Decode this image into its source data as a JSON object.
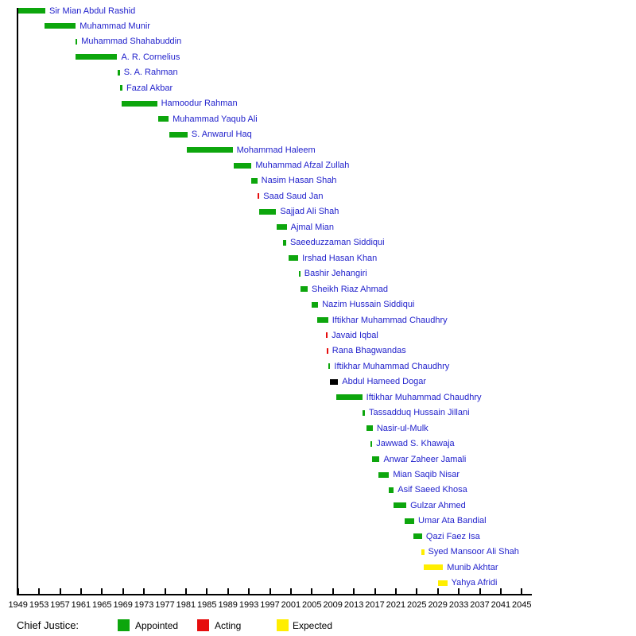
{
  "chart_data": {
    "type": "timeline",
    "title": "",
    "description": "Tenure timeline of Chief Justices of Pakistan",
    "x_axis": {
      "start_year": 1949,
      "end_year": 2045,
      "tick_step": 4,
      "tick_years": [
        1949,
        1953,
        1957,
        1961,
        1965,
        1969,
        1973,
        1977,
        1981,
        1985,
        1989,
        1993,
        1997,
        2001,
        2005,
        2009,
        2013,
        2017,
        2021,
        2025,
        2029,
        2033,
        2037,
        2041,
        2045
      ]
    },
    "legend": {
      "title": "Chief Justice:",
      "items": [
        {
          "label": "Appointed",
          "status": "appointed"
        },
        {
          "label": "Acting",
          "status": "acting"
        },
        {
          "label": "Expected",
          "status": "expected"
        }
      ]
    },
    "status_colors": {
      "appointed": "#0DA60D",
      "acting": "#E60D0D",
      "expected": "#FFEE00",
      "de_facto": "#000000"
    },
    "label_color": "#2222CC",
    "axis_color": "#000000",
    "justices": [
      {
        "name": "Sir Mian Abdul Rashid",
        "start": 1949.1,
        "end": 1954.2,
        "status": "appointed"
      },
      {
        "name": "Muhammad Munir",
        "start": 1954.1,
        "end": 1960.0,
        "status": "appointed"
      },
      {
        "name": "Muhammad Shahabuddin",
        "start": 1959.9,
        "end": 1960.3,
        "status": "appointed"
      },
      {
        "name": "A. R. Cornelius",
        "start": 1960.0,
        "end": 1967.9,
        "status": "appointed"
      },
      {
        "name": "S. A. Rahman",
        "start": 1968.0,
        "end": 1968.4,
        "status": "appointed"
      },
      {
        "name": "Fazal Akbar",
        "start": 1968.5,
        "end": 1968.9,
        "status": "appointed"
      },
      {
        "name": "Hamoodur Rahman",
        "start": 1968.7,
        "end": 1975.5,
        "status": "appointed"
      },
      {
        "name": "Muhammad Yaqub Ali",
        "start": 1975.7,
        "end": 1977.7,
        "status": "appointed"
      },
      {
        "name": "S. Anwarul Haq",
        "start": 1977.9,
        "end": 1981.3,
        "status": "appointed"
      },
      {
        "name": "Mohammad Haleem",
        "start": 1981.1,
        "end": 1989.9,
        "status": "appointed"
      },
      {
        "name": "Muhammad Afzal Zullah",
        "start": 1990.1,
        "end": 1993.5,
        "status": "appointed"
      },
      {
        "name": "Nasim Hasan Shah",
        "start": 1993.5,
        "end": 1994.6,
        "status": "appointed"
      },
      {
        "name": "Saad Saud Jan",
        "start": 1994.6,
        "end": 1995.0,
        "status": "acting"
      },
      {
        "name": "Sajjad Ali Shah",
        "start": 1994.9,
        "end": 1998.2,
        "status": "appointed"
      },
      {
        "name": "Ajmal Mian",
        "start": 1998.3,
        "end": 2000.2,
        "status": "appointed"
      },
      {
        "name": "Saeeduzzaman Siddiqui",
        "start": 1999.5,
        "end": 2000.1,
        "status": "appointed"
      },
      {
        "name": "Irshad Hasan Khan",
        "start": 2000.6,
        "end": 2002.4,
        "status": "appointed"
      },
      {
        "name": "Bashir Jehangiri",
        "start": 2002.5,
        "end": 2002.8,
        "status": "appointed"
      },
      {
        "name": "Sheikh Riaz Ahmad",
        "start": 2002.8,
        "end": 2004.2,
        "status": "appointed"
      },
      {
        "name": "Nazim Hussain Siddiqui",
        "start": 2004.9,
        "end": 2006.2,
        "status": "appointed"
      },
      {
        "name": "Iftikhar Muhammad Chaudhry",
        "start": 2006.0,
        "end": 2008.1,
        "status": "appointed"
      },
      {
        "name": "Javaid Iqbal",
        "start": 2007.7,
        "end": 2008.0,
        "status": "acting"
      },
      {
        "name": "Rana Bhagwandas",
        "start": 2007.8,
        "end": 2008.1,
        "status": "acting"
      },
      {
        "name": "Iftikhar Muhammad Chaudhry",
        "start": 2008.1,
        "end": 2008.5,
        "status": "appointed"
      },
      {
        "name": "Abdul Hameed Dogar",
        "start": 2008.5,
        "end": 2010.0,
        "status": "de_facto"
      },
      {
        "name": "Iftikhar Muhammad Chaudhry",
        "start": 2009.7,
        "end": 2014.6,
        "status": "appointed"
      },
      {
        "name": "Tassadduq Hussain Jillani",
        "start": 2014.6,
        "end": 2015.1,
        "status": "appointed"
      },
      {
        "name": "Nasir-ul-Mulk",
        "start": 2015.4,
        "end": 2016.6,
        "status": "appointed"
      },
      {
        "name": "Jawwad S. Khawaja",
        "start": 2016.2,
        "end": 2016.5,
        "status": "appointed"
      },
      {
        "name": "Anwar Zaheer Jamali",
        "start": 2016.5,
        "end": 2017.9,
        "status": "appointed"
      },
      {
        "name": "Mian Saqib Nisar",
        "start": 2017.7,
        "end": 2019.7,
        "status": "appointed"
      },
      {
        "name": "Asif Saeed Khosa",
        "start": 2019.6,
        "end": 2020.6,
        "status": "appointed"
      },
      {
        "name": "Gulzar Ahmed",
        "start": 2020.6,
        "end": 2023.0,
        "status": "appointed"
      },
      {
        "name": "Umar Ata Bandial",
        "start": 2022.7,
        "end": 2024.5,
        "status": "appointed"
      },
      {
        "name": "Qazi Faez Isa",
        "start": 2024.3,
        "end": 2026.0,
        "status": "appointed"
      },
      {
        "name": "Syed Mansoor Ali Shah",
        "start": 2025.8,
        "end": 2026.4,
        "status": "expected"
      },
      {
        "name": "Munib Akhtar",
        "start": 2026.3,
        "end": 2030.0,
        "status": "expected"
      },
      {
        "name": "Yahya Afridi",
        "start": 2029.0,
        "end": 2030.8,
        "status": "expected"
      }
    ]
  }
}
